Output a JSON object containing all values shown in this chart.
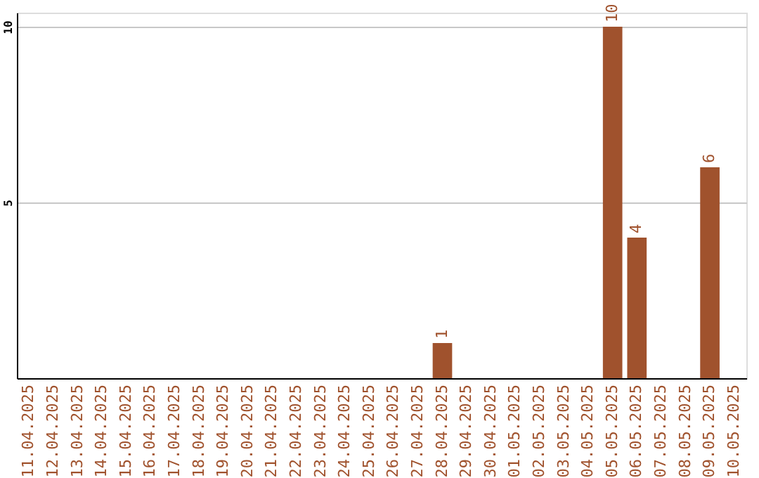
{
  "chart_data": {
    "type": "bar",
    "categories": [
      "11.04.2025",
      "12.04.2025",
      "13.04.2025",
      "14.04.2025",
      "15.04.2025",
      "16.04.2025",
      "17.04.2025",
      "18.04.2025",
      "19.04.2025",
      "20.04.2025",
      "21.04.2025",
      "22.04.2025",
      "23.04.2025",
      "24.04.2025",
      "25.04.2025",
      "26.04.2025",
      "27.04.2025",
      "28.04.2025",
      "29.04.2025",
      "30.04.2025",
      "01.05.2025",
      "02.05.2025",
      "03.05.2025",
      "04.05.2025",
      "05.05.2025",
      "06.05.2025",
      "07.05.2025",
      "08.05.2025",
      "09.05.2025",
      "10.05.2025"
    ],
    "values": [
      null,
      null,
      null,
      null,
      null,
      null,
      null,
      null,
      null,
      null,
      null,
      null,
      null,
      null,
      null,
      null,
      null,
      1,
      null,
      null,
      null,
      null,
      null,
      null,
      10,
      4,
      null,
      null,
      6,
      null
    ],
    "value_labels": [
      null,
      null,
      null,
      null,
      null,
      null,
      null,
      null,
      null,
      null,
      null,
      null,
      null,
      null,
      null,
      null,
      null,
      "1",
      null,
      null,
      null,
      null,
      null,
      null,
      "10",
      "4",
      null,
      null,
      "6",
      null
    ],
    "color": "#a0522d",
    "ylim": [
      0,
      10.4
    ],
    "yticks": [
      5,
      10
    ],
    "grid": "y"
  }
}
